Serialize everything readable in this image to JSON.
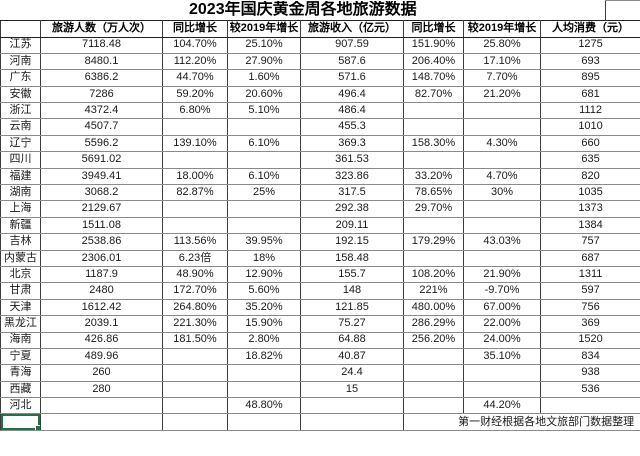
{
  "title": "2023年国庆黄金周各地旅游数据",
  "source_note": "第一财经根据各地文旅部门数据整理",
  "selection_color": "#217346",
  "columns": [
    "",
    "旅游人数（万人次）",
    "同比增长",
    "较2019年增长",
    "旅游收入（亿元）",
    "同比增长",
    "较2019年增长",
    "人均消费（元）"
  ],
  "rows": [
    {
      "province": "江苏",
      "cells": [
        "7118.48",
        "104.70%",
        "25.10%",
        "907.59",
        "151.90%",
        "25.80%",
        "1275"
      ]
    },
    {
      "province": "河南",
      "cells": [
        "8480.1",
        "112.20%",
        "27.90%",
        "587.6",
        "206.40%",
        "17.10%",
        "693"
      ]
    },
    {
      "province": "广东",
      "cells": [
        "6386.2",
        "44.70%",
        "1.60%",
        "571.6",
        "148.70%",
        "7.70%",
        "895"
      ]
    },
    {
      "province": "安徽",
      "cells": [
        "7286",
        "59.20%",
        "20.60%",
        "496.4",
        "82.70%",
        "21.20%",
        "681"
      ]
    },
    {
      "province": "浙江",
      "cells": [
        "4372.4",
        "6.80%",
        "5.10%",
        "486.4",
        "",
        "",
        "1112"
      ]
    },
    {
      "province": "云南",
      "cells": [
        "4507.7",
        "",
        "",
        "455.3",
        "",
        "",
        "1010"
      ]
    },
    {
      "province": "辽宁",
      "cells": [
        "5596.2",
        "139.10%",
        "6.10%",
        "369.3",
        "158.30%",
        "4.30%",
        "660"
      ]
    },
    {
      "province": "四川",
      "cells": [
        "5691.02",
        "",
        "",
        "361.53",
        "",
        "",
        "635"
      ]
    },
    {
      "province": "福建",
      "cells": [
        "3949.41",
        "18.00%",
        "6.10%",
        "323.86",
        "33.20%",
        "4.70%",
        "820"
      ]
    },
    {
      "province": "湖南",
      "cells": [
        "3068.2",
        "82.87%",
        "25%",
        "317.5",
        "78.65%",
        "30%",
        "1035"
      ]
    },
    {
      "province": "上海",
      "cells": [
        "2129.67",
        "",
        "",
        "292.38",
        "29.70%",
        "",
        "1373"
      ]
    },
    {
      "province": "新疆",
      "cells": [
        "1511.08",
        "",
        "",
        "209.11",
        "",
        "",
        "1384"
      ]
    },
    {
      "province": "吉林",
      "cells": [
        "2538.86",
        "113.56%",
        "39.95%",
        "192.15",
        "179.29%",
        "43.03%",
        "757"
      ]
    },
    {
      "province": "内蒙古",
      "cells": [
        "2306.01",
        "6.23倍",
        "18%",
        "158.48",
        "",
        "",
        "687"
      ]
    },
    {
      "province": "北京",
      "cells": [
        "1187.9",
        "48.90%",
        "12.90%",
        "155.7",
        "108.20%",
        "21.90%",
        "1311"
      ]
    },
    {
      "province": "甘肃",
      "cells": [
        "2480",
        "172.70%",
        "5.60%",
        "148",
        "221%",
        "-9.70%",
        "597"
      ]
    },
    {
      "province": "天津",
      "cells": [
        "1612.42",
        "264.80%",
        "35.20%",
        "121.85",
        "480.00%",
        "67.00%",
        "756"
      ]
    },
    {
      "province": "黑龙江",
      "cells": [
        "2039.1",
        "221.30%",
        "15.90%",
        "75.27",
        "286.29%",
        "22.00%",
        "369"
      ]
    },
    {
      "province": "海南",
      "cells": [
        "426.86",
        "181.50%",
        "2.80%",
        "64.88",
        "256.20%",
        "24.00%",
        "1520"
      ]
    },
    {
      "province": "宁夏",
      "cells": [
        "489.96",
        "",
        "18.82%",
        "40.87",
        "",
        "35.10%",
        "834"
      ]
    },
    {
      "province": "青海",
      "cells": [
        "260",
        "",
        "",
        "24.4",
        "",
        "",
        "938"
      ]
    },
    {
      "province": "西藏",
      "cells": [
        "280",
        "",
        "",
        "15",
        "",
        "",
        "536"
      ]
    },
    {
      "province": "河北",
      "cells": [
        "",
        "",
        "48.80%",
        "",
        "",
        "44.20%",
        ""
      ]
    }
  ]
}
